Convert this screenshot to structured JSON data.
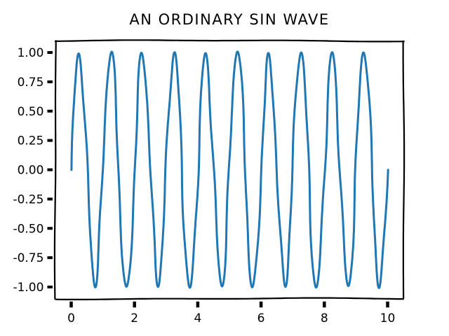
{
  "chart_data": {
    "type": "line",
    "title": "AN ORDINARY SIN WAVE",
    "style": "xkcd-hand-drawn",
    "function": "y = sin(2*pi*x)",
    "amplitude": 1,
    "frequency_cycles_per_x_unit": 1,
    "phase": 0,
    "x_range": [
      0,
      10
    ],
    "num_cycles": 10,
    "peak_y": 1.0,
    "trough_y": -1.0,
    "peaks_x": [
      0.25,
      1.25,
      2.25,
      3.25,
      4.25,
      5.25,
      6.25,
      7.25,
      8.25,
      9.25
    ],
    "troughs_x": [
      0.75,
      1.75,
      2.75,
      3.75,
      4.75,
      5.75,
      6.75,
      7.75,
      8.75,
      9.75
    ],
    "start_point": [
      0,
      0.0
    ],
    "end_point": [
      10,
      0.0
    ],
    "xlim": [
      -0.5,
      10.5
    ],
    "ylim": [
      -1.1,
      1.1
    ],
    "xlabel": "",
    "ylabel": "",
    "x_tick_values": [
      0,
      2,
      4,
      6,
      8,
      10
    ],
    "x_tick_labels": [
      "0",
      "2",
      "4",
      "6",
      "8",
      "10"
    ],
    "y_tick_values": [
      1.0,
      0.75,
      0.5,
      0.25,
      0.0,
      -0.25,
      -0.5,
      -0.75,
      -1.0
    ],
    "y_tick_labels": [
      "1.00",
      "0.75",
      "0.50",
      "0.25",
      "0.00",
      "-0.25",
      "-0.50",
      "-0.75",
      "-1.00"
    ],
    "grid": false,
    "legend": false,
    "line_color": "#1f77b4",
    "axis_color": "#000000",
    "background_color": "#ffffff",
    "samples_per_unit": 140
  }
}
